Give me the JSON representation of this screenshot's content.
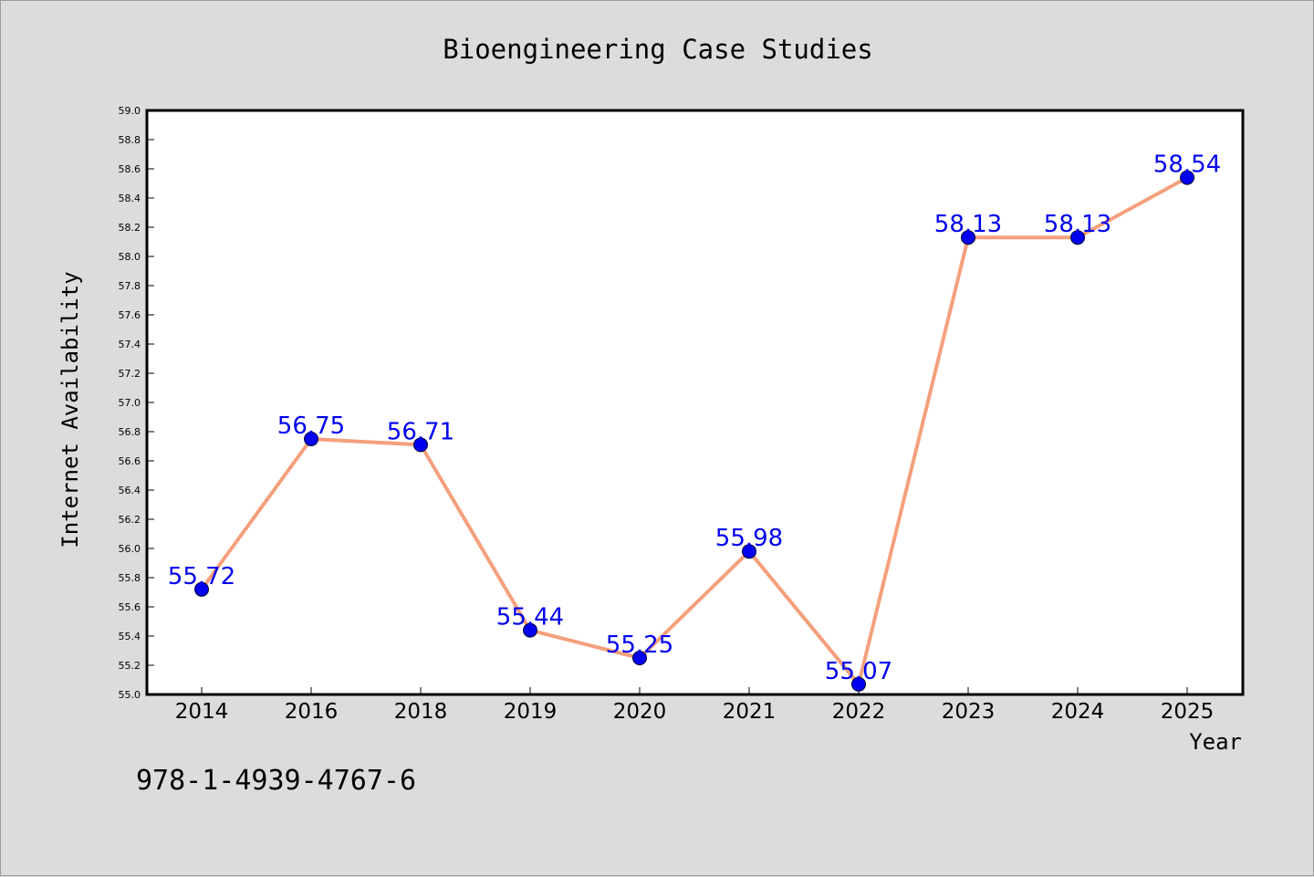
{
  "chart_data": {
    "type": "line",
    "title": "Bioengineering Case Studies",
    "xlabel": "Year",
    "ylabel": "Internet Availability",
    "categories": [
      "2014",
      "2016",
      "2018",
      "2019",
      "2020",
      "2021",
      "2022",
      "2023",
      "2024",
      "2025"
    ],
    "series": [
      {
        "values": [
          55.72,
          56.75,
          56.71,
          55.44,
          55.25,
          55.98,
          55.07,
          58.13,
          58.13,
          58.54
        ],
        "labels": [
          "55.72",
          "56.75",
          "56.71",
          "55.44",
          "55.25",
          "55.98",
          "55.07",
          "58.13",
          "58.13",
          "58.54"
        ],
        "line_color": "#f4a07c",
        "marker_color": "#0000ee"
      }
    ],
    "ylim": [
      55.0,
      59.0
    ],
    "yticks": [
      "55.0",
      "55.2",
      "55.4",
      "55.6",
      "55.8",
      "56.0",
      "56.2",
      "56.4",
      "56.6",
      "56.8",
      "57.0",
      "57.2",
      "57.4",
      "57.6",
      "57.8",
      "58.0",
      "58.2",
      "58.4",
      "58.6",
      "58.8",
      "59.0"
    ],
    "grid": false,
    "label_color": "#0000ee"
  },
  "footer_text": "978-1-4939-4767-6",
  "colors": {
    "background": "#dcdcdc",
    "plot_area": "#ffffff"
  }
}
